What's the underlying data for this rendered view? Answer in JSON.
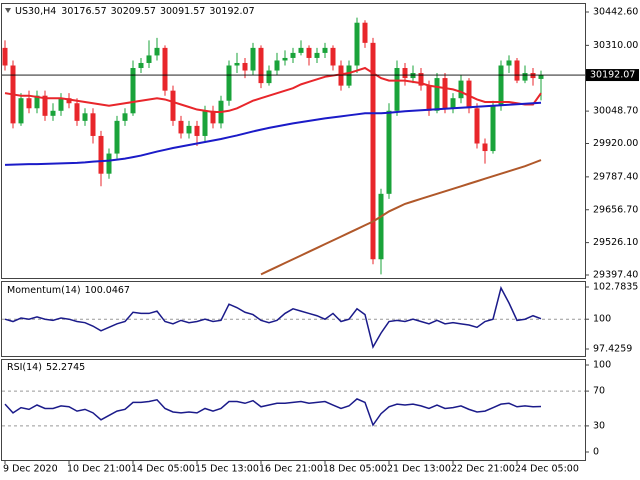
{
  "chart_data": [
    {
      "type": "candlestick",
      "symbol": "US30,H4",
      "categories": [
        "9 Dec 2020",
        null,
        null,
        null,
        null,
        null,
        null,
        null,
        "10 Dec 21:00",
        null,
        null,
        null,
        null,
        null,
        null,
        null,
        "14 Dec 05:00",
        null,
        null,
        null,
        null,
        null,
        null,
        null,
        "15 Dec 13:00",
        null,
        null,
        null,
        null,
        null,
        null,
        null,
        "16 Dec 21:00",
        null,
        null,
        null,
        null,
        null,
        null,
        null,
        "18 Dec 05:00",
        null,
        null,
        null,
        null,
        null,
        null,
        null,
        "21 Dec 13:00",
        null,
        null,
        null,
        null,
        null,
        null,
        null,
        "22 Dec 21:00",
        null,
        null,
        null,
        null,
        null,
        null,
        null,
        "24 Dec 05:00",
        null,
        null,
        null
      ],
      "open": [
        30300,
        30230,
        30000,
        30100,
        30060,
        30110,
        30030,
        30050,
        30100,
        30080,
        30010,
        30040,
        29950,
        29800,
        29880,
        30010,
        30040,
        30220,
        30240,
        30270,
        30300,
        30130,
        30010,
        29960,
        29990,
        29950,
        30050,
        30000,
        30090,
        30230,
        30240,
        30210,
        30300,
        30160,
        30210,
        30250,
        30260,
        30280,
        30300,
        30260,
        30280,
        30300,
        30230,
        30150,
        30230,
        30400,
        30320,
        29460,
        29720,
        30050,
        30220,
        30180,
        30200,
        30150,
        30050,
        30180,
        30060,
        30100,
        30170,
        30060,
        29920,
        29890,
        30070,
        30230,
        30250,
        30170,
        30200,
        30176.57
      ],
      "high": [
        30330,
        30250,
        30120,
        30130,
        30130,
        30130,
        30080,
        30120,
        30120,
        30100,
        30060,
        30060,
        29970,
        29900,
        30030,
        30060,
        30250,
        30260,
        30330,
        30340,
        30310,
        30150,
        30030,
        30010,
        30010,
        30070,
        30070,
        30110,
        30250,
        30280,
        30260,
        30320,
        30310,
        30230,
        30280,
        30290,
        30300,
        30330,
        30310,
        30300,
        30320,
        30310,
        30250,
        30250,
        30420,
        30410,
        30340,
        29740,
        30080,
        30250,
        30240,
        30230,
        30220,
        30170,
        30200,
        30200,
        30120,
        30190,
        30180,
        30080,
        29940,
        30090,
        30250,
        30270,
        30260,
        30230,
        30220,
        30209.57
      ],
      "low": [
        30210,
        29980,
        29990,
        30040,
        30040,
        30010,
        30010,
        30030,
        30060,
        29990,
        29990,
        29920,
        29750,
        29780,
        29860,
        29990,
        30030,
        30200,
        30220,
        30250,
        30110,
        29990,
        29940,
        29940,
        29910,
        29930,
        29980,
        29980,
        30070,
        30200,
        30180,
        30190,
        30140,
        30150,
        30190,
        30230,
        30240,
        30270,
        30230,
        30240,
        30260,
        30210,
        30130,
        30140,
        30200,
        30300,
        29440,
        29400,
        29700,
        30030,
        30150,
        30160,
        30130,
        30030,
        30040,
        30040,
        30040,
        30080,
        30040,
        29900,
        29840,
        29880,
        30050,
        30200,
        30160,
        30160,
        30150,
        30091.57
      ],
      "close": [
        30230,
        30000,
        30100,
        30060,
        30110,
        30030,
        30050,
        30100,
        30080,
        30010,
        30040,
        29950,
        29800,
        29880,
        30010,
        30040,
        30220,
        30240,
        30270,
        30300,
        30130,
        30010,
        29960,
        29990,
        29950,
        30050,
        30000,
        30090,
        30230,
        30240,
        30210,
        30300,
        30160,
        30210,
        30250,
        30260,
        30280,
        30300,
        30260,
        30280,
        30300,
        30230,
        30150,
        30230,
        30400,
        30320,
        29460,
        29720,
        30050,
        30220,
        30180,
        30200,
        30150,
        30050,
        30180,
        30060,
        30100,
        30170,
        30060,
        29920,
        29890,
        30070,
        30230,
        30250,
        30170,
        30200,
        30180,
        30192.07
      ],
      "up_color": "#1aa33a",
      "down_color": "#e8262b",
      "series": [
        {
          "color": "#e8262b",
          "values": [
            30120,
            30115,
            30110,
            30110,
            30105,
            30100,
            30100,
            30100,
            30095,
            30090,
            30085,
            30080,
            30075,
            30070,
            30075,
            30080,
            30085,
            30090,
            30095,
            30100,
            30095,
            30085,
            30075,
            30065,
            30055,
            30050,
            30045,
            30045,
            30050,
            30060,
            30075,
            30090,
            30100,
            30110,
            30120,
            30130,
            30140,
            30155,
            30165,
            30175,
            30185,
            30190,
            30195,
            30200,
            30210,
            30220,
            30200,
            30180,
            30170,
            30170,
            30170,
            30165,
            30160,
            30150,
            30145,
            30140,
            30135,
            30125,
            30110,
            30095,
            30085,
            30085,
            30085,
            30085,
            30080,
            30075,
            30075,
            30120
          ]
        },
        {
          "color": "#1b1bc8",
          "values": [
            29835,
            29836,
            29837,
            29838,
            29838,
            29839,
            29840,
            29841,
            29842,
            29843,
            29845,
            29848,
            29850,
            29852,
            29856,
            29860,
            29866,
            29872,
            29880,
            29888,
            29895,
            29902,
            29908,
            29914,
            29920,
            29926,
            29932,
            29938,
            29945,
            29952,
            29960,
            29968,
            29975,
            29982,
            29988,
            29994,
            30000,
            30005,
            30010,
            30015,
            30020,
            30024,
            30028,
            30032,
            30036,
            30040,
            30040,
            30040,
            30042,
            30045,
            30048,
            30050,
            30052,
            30054,
            30056,
            30058,
            30060,
            30062,
            30064,
            30066,
            30068,
            30070,
            30072,
            30074,
            30076,
            30078,
            30080,
            30082
          ]
        },
        {
          "color": "#b0582a",
          "values": [
            null,
            null,
            null,
            null,
            null,
            null,
            null,
            null,
            null,
            null,
            null,
            null,
            null,
            null,
            null,
            null,
            null,
            null,
            null,
            null,
            null,
            null,
            null,
            null,
            null,
            null,
            null,
            null,
            null,
            null,
            null,
            null,
            29400,
            29415,
            29430,
            29445,
            29460,
            29475,
            29490,
            29505,
            29520,
            29535,
            29550,
            29565,
            29580,
            29595,
            29610,
            29630,
            29650,
            29665,
            29680,
            29690,
            29700,
            29710,
            29720,
            29730,
            29740,
            29750,
            29760,
            29770,
            29780,
            29790,
            29800,
            29810,
            29820,
            29830,
            29842,
            29854
          ]
        }
      ],
      "ylim": [
        29397.4,
        30442.6
      ],
      "yticks": [
        {
          "value": 30442.6,
          "label": "30442.60"
        },
        {
          "value": 30310,
          "label": "30310.00"
        },
        {
          "value": 30048.7,
          "label": "30048.70"
        },
        {
          "value": 29920,
          "label": "29920.00"
        },
        {
          "value": 29787.4,
          "label": "29787.40"
        },
        {
          "value": 29656.7,
          "label": "29656.70"
        },
        {
          "value": 29526.1,
          "label": "29526.10"
        },
        {
          "value": 29397.4,
          "label": "29397.40"
        }
      ]
    },
    {
      "type": "line",
      "title": "Momentum(14)",
      "color": "#1b1b8a",
      "values": [
        100.0,
        99.8,
        100.1,
        100.0,
        100.2,
        100.0,
        99.9,
        100.1,
        100.0,
        99.8,
        99.7,
        99.4,
        99.0,
        99.3,
        99.6,
        99.8,
        100.6,
        100.5,
        100.5,
        100.7,
        99.8,
        99.6,
        99.9,
        99.7,
        99.8,
        100.0,
        99.8,
        99.9,
        101.3,
        101.0,
        100.6,
        100.4,
        99.9,
        99.7,
        99.9,
        100.5,
        100.9,
        100.7,
        100.5,
        100.3,
        100.0,
        100.5,
        99.8,
        100.0,
        100.9,
        100.4,
        97.6,
        98.8,
        99.8,
        99.9,
        99.8,
        100.0,
        99.8,
        99.6,
        99.9,
        99.6,
        99.7,
        99.6,
        99.5,
        99.3,
        99.8,
        100.0,
        102.7,
        101.4,
        99.9,
        100.0,
        100.3,
        100.0467
      ],
      "ylim": [
        97.4259,
        102.7835
      ],
      "yticks": [
        102.7835,
        100,
        97.4259
      ]
    },
    {
      "type": "line",
      "title": "RSI(14)",
      "color": "#1b1b8a",
      "values": [
        55,
        45,
        51,
        49,
        54,
        50,
        50,
        53,
        52,
        47,
        49,
        45,
        37,
        42,
        47,
        49,
        57,
        57,
        58,
        60,
        50,
        46,
        45,
        46,
        45,
        50,
        47,
        50,
        58,
        58,
        56,
        59,
        52,
        54,
        56,
        56,
        57,
        58,
        56,
        57,
        58,
        54,
        50,
        53,
        61,
        57,
        31,
        44,
        52,
        55,
        54,
        55,
        53,
        50,
        54,
        50,
        51,
        53,
        49,
        46,
        47,
        51,
        55,
        56,
        52,
        53,
        52,
        52.2745
      ],
      "ylim": [
        0,
        100
      ],
      "yticks": [
        100,
        70,
        30,
        0
      ]
    }
  ]
}
